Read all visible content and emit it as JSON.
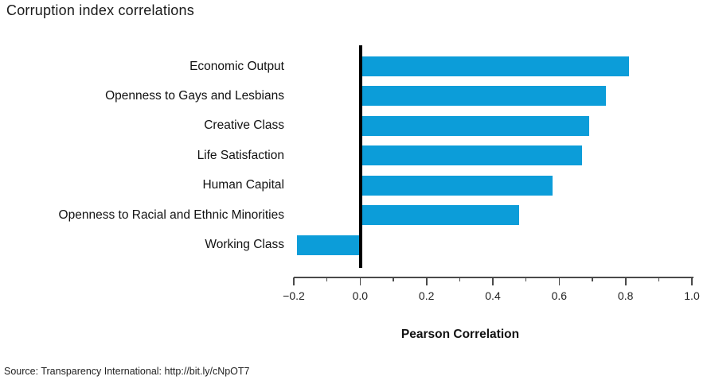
{
  "title": "Corruption index correlations",
  "source": "Source: Transparency International: http://bit.ly/cNpOT7",
  "chart_data": {
    "type": "bar",
    "orientation": "horizontal",
    "title": "Corruption index correlations",
    "categories": [
      "Economic Output",
      "Openness to Gays and Lesbians",
      "Creative Class",
      "Life Satisfaction",
      "Human Capital",
      "Openness to Racial and Ethnic Minorities",
      "Working Class"
    ],
    "values": [
      0.81,
      0.74,
      0.69,
      0.67,
      0.58,
      0.48,
      -0.19
    ],
    "xlabel": "Pearson Correlation",
    "ylabel": "",
    "xlim": [
      -0.2,
      1.0
    ],
    "x_major_ticks": [
      -0.2,
      0.0,
      0.2,
      0.4,
      0.6,
      0.8,
      1.0
    ],
    "x_tick_labels": [
      "−0.2",
      "0.0",
      "0.2",
      "0.4",
      "0.6",
      "0.8",
      "1.0"
    ],
    "x_minor_ticks": [
      -0.1,
      0.1,
      0.3,
      0.5,
      0.7,
      0.9
    ],
    "bar_color": "#0c9dd9",
    "zero_line_color": "#000000",
    "axis_color": "#4a4a4a",
    "grid": false,
    "legend_position": "none"
  }
}
